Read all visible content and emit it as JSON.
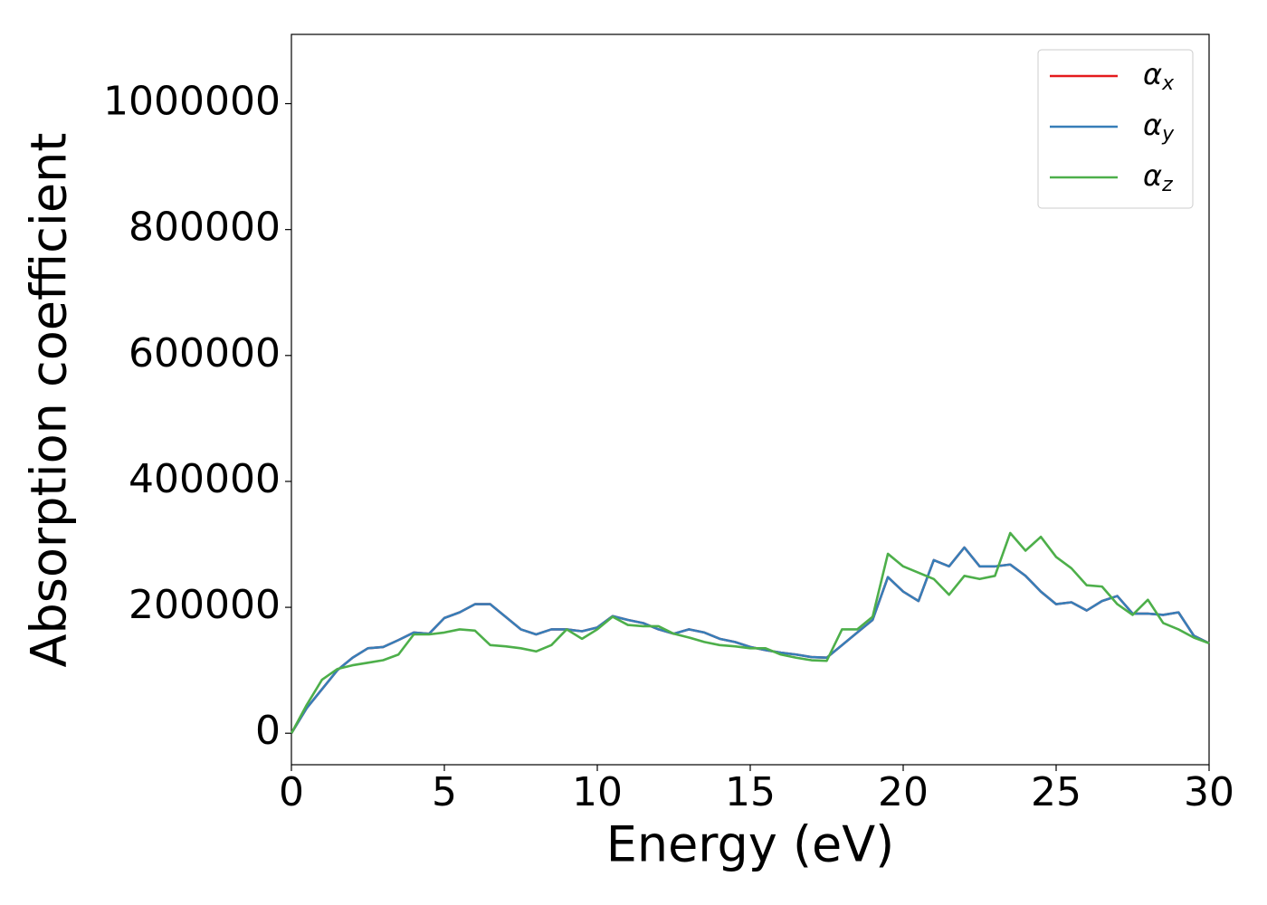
{
  "chart_data": {
    "type": "line",
    "xlabel": "Energy (eV)",
    "ylabel": "Absorption coefficient",
    "x": [
      0,
      0.5,
      1,
      1.5,
      2,
      2.5,
      3,
      3.5,
      4,
      4.5,
      5,
      5.5,
      6,
      6.5,
      7,
      7.5,
      8,
      8.5,
      9,
      9.5,
      10,
      10.5,
      11,
      11.5,
      12,
      12.5,
      13,
      13.5,
      14,
      14.5,
      15,
      15.5,
      16,
      16.5,
      17,
      17.5,
      18,
      18.5,
      19,
      19.5,
      20,
      20.5,
      21,
      21.5,
      22,
      22.5,
      23,
      23.5,
      24,
      24.5,
      25,
      25.5,
      26,
      26.5,
      27,
      27.5,
      28,
      28.5,
      29,
      29.5,
      30
    ],
    "series": [
      {
        "name": "αx",
        "color": "#e41a1c",
        "values": [
          0,
          40000,
          70000,
          100000,
          120000,
          135000,
          137000,
          148000,
          160000,
          158000,
          183000,
          192000,
          205000,
          205000,
          185000,
          165000,
          157000,
          165000,
          165000,
          162000,
          168000,
          186000,
          180000,
          175000,
          165000,
          158000,
          165000,
          160000,
          150000,
          145000,
          137000,
          132000,
          128000,
          125000,
          121000,
          120000,
          140000,
          160000,
          180000,
          248000,
          225000,
          210000,
          275000,
          265000,
          295000,
          265000,
          265000,
          268000,
          250000,
          225000,
          205000,
          208000,
          195000,
          210000,
          218000,
          190000,
          190000,
          188000,
          192000,
          155000,
          143000
        ]
      },
      {
        "name": "αy",
        "color": "#377eb8",
        "values": [
          0,
          40000,
          70000,
          100000,
          120000,
          135000,
          137000,
          148000,
          160000,
          158000,
          183000,
          192000,
          205000,
          205000,
          185000,
          165000,
          157000,
          165000,
          165000,
          162000,
          168000,
          186000,
          180000,
          175000,
          165000,
          158000,
          165000,
          160000,
          150000,
          145000,
          137000,
          132000,
          128000,
          125000,
          121000,
          120000,
          140000,
          160000,
          180000,
          248000,
          225000,
          210000,
          275000,
          265000,
          295000,
          265000,
          265000,
          268000,
          250000,
          225000,
          205000,
          208000,
          195000,
          210000,
          218000,
          190000,
          190000,
          188000,
          192000,
          155000,
          143000
        ]
      },
      {
        "name": "αz",
        "color": "#4daf4a",
        "values": [
          0,
          45000,
          85000,
          102000,
          108000,
          112000,
          116000,
          125000,
          157000,
          157000,
          160000,
          165000,
          163000,
          140000,
          138000,
          135000,
          130000,
          140000,
          165000,
          150000,
          165000,
          185000,
          172000,
          170000,
          170000,
          158000,
          152000,
          145000,
          140000,
          138000,
          135000,
          135000,
          125000,
          120000,
          116000,
          115000,
          165000,
          165000,
          185000,
          285000,
          265000,
          255000,
          245000,
          220000,
          250000,
          245000,
          250000,
          318000,
          290000,
          312000,
          280000,
          262000,
          235000,
          233000,
          205000,
          188000,
          212000,
          175000,
          165000,
          152000,
          143000
        ]
      }
    ],
    "xlim": [
      0,
      30
    ],
    "xticks": [
      0,
      5,
      10,
      15,
      20,
      25,
      30
    ],
    "ylim": [
      -50000,
      1110000
    ],
    "yticks": [
      0,
      200000,
      400000,
      600000,
      800000,
      1000000
    ],
    "grid": false,
    "legend": "upper right"
  }
}
